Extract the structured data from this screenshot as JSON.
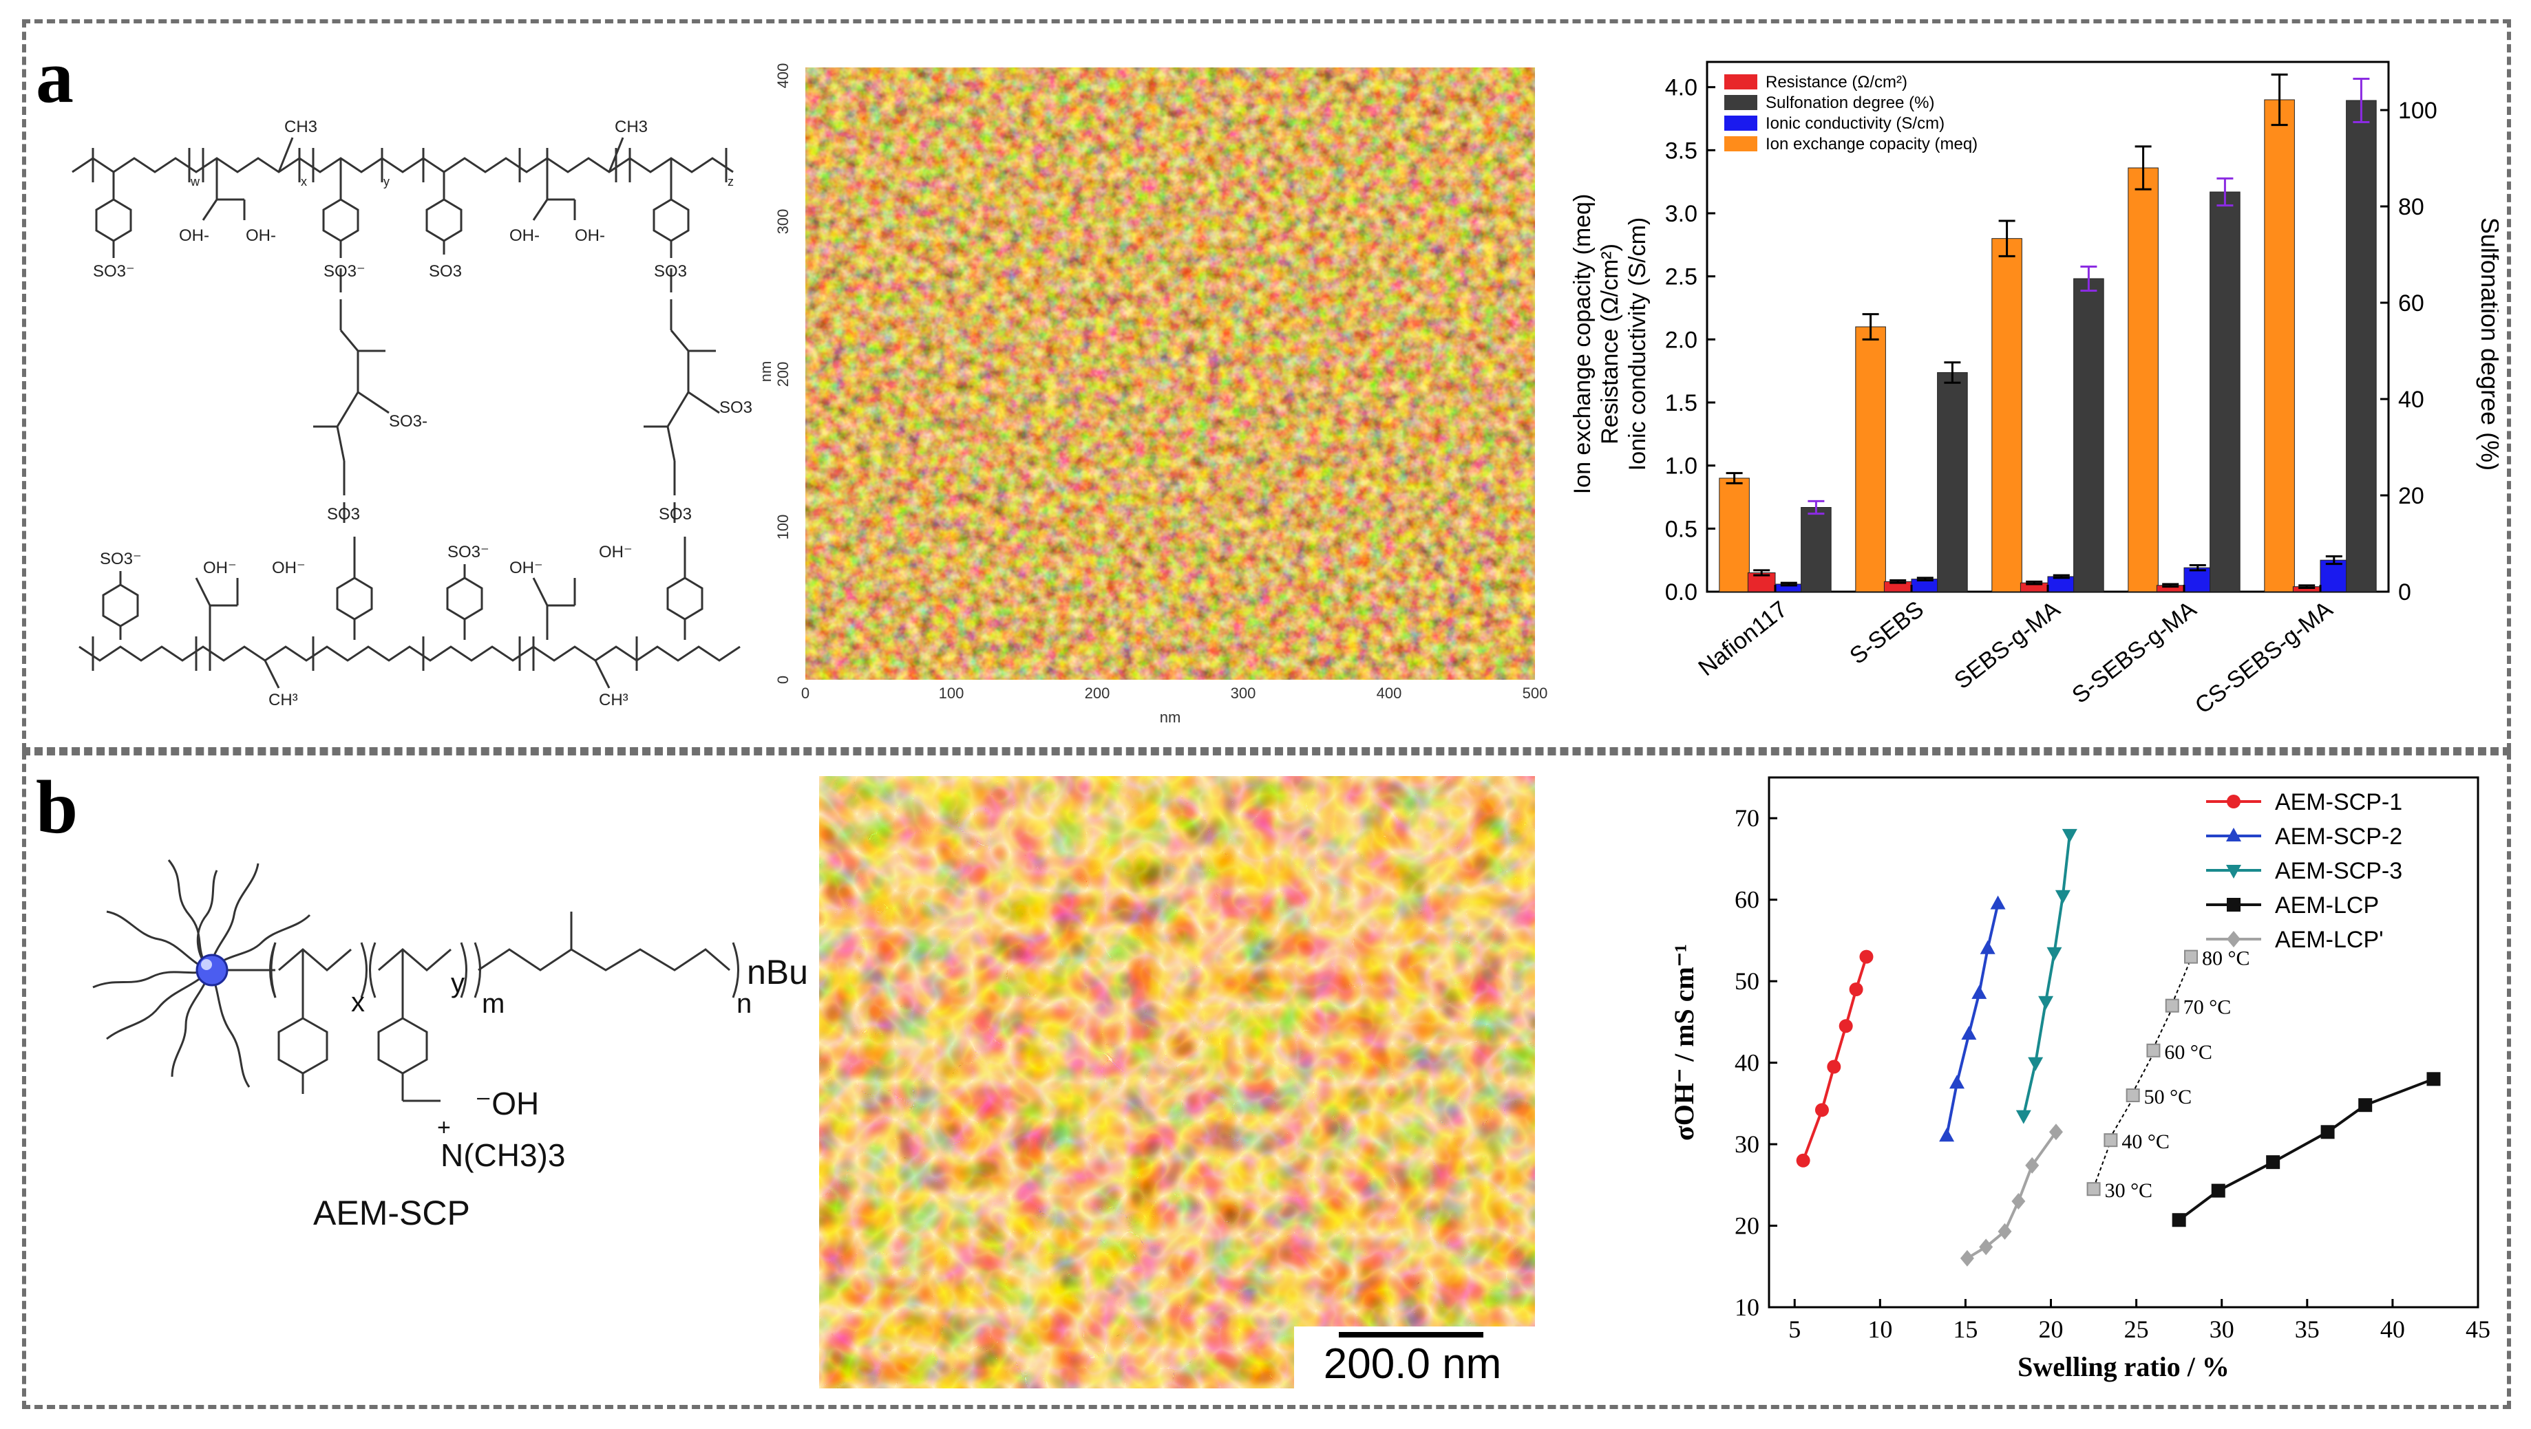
{
  "panels": {
    "a_label": "a",
    "b_label": "b"
  },
  "chem_a": {
    "so3_minus": "SO3⁻",
    "so3": "SO3",
    "so3_super": "SO3-",
    "oh_minus": "OH-",
    "oh": "OH⁻",
    "ch3": "CH3",
    "ch3_b": "CH³",
    "subs": [
      "w",
      "x",
      "y",
      "z"
    ]
  },
  "afm_a": {
    "axis_label_x": "nm",
    "axis_label_y": "nm",
    "x_ticks": [
      "0",
      "100",
      "200",
      "300",
      "400",
      "500"
    ],
    "y_ticks": [
      "0",
      "100",
      "200",
      "300",
      "400"
    ]
  },
  "chart_a_text": {
    "ylabel_left_1": "Ion exchange copacity (meq)",
    "ylabel_left_2": "Resistance (Ω/cm²)",
    "ylabel_left_3": "Ionic conductivity (S/cm)",
    "ylabel_right": "Sulfonation degree (%)"
  },
  "chem_b": {
    "sub_x": "x",
    "sub_y": "y",
    "sub_m": "m",
    "sub_n": "n",
    "end_group": "nBu",
    "hydroxide": "⁻OH",
    "plus": "+",
    "ammonium": "N(CH3)3",
    "name": "AEM-SCP"
  },
  "afm_b": {
    "scale_bar": "200.0 nm"
  },
  "colors": {
    "border": "#6f6f6f",
    "orange": "#ff8c1a",
    "red": "#e8262a",
    "blue": "#1a1aef",
    "dark": "#3c3c3c",
    "purple": "#8b2be2",
    "scp1": "#e8242a",
    "scp2": "#2343c9",
    "scp3": "#198a8e",
    "lcp": "#111111",
    "lcp_prime": "#a3a3a3"
  },
  "chart_data": [
    {
      "type": "bar",
      "categories": [
        "Nafion117",
        "S-SEBS",
        "SEBS-g-MA",
        "S-SEBS-g-MA",
        "CS-SEBS-g-MA"
      ],
      "series": [
        {
          "name": "Resistance (Ω/cm²)",
          "axis": "left",
          "values": [
            0.15,
            0.08,
            0.07,
            0.05,
            0.04
          ]
        },
        {
          "name": "Sulfonation degree (%)",
          "axis": "right",
          "values": [
            17.5,
            45.5,
            65,
            83,
            102
          ]
        },
        {
          "name": "Ionic conductivity (S/cm)",
          "axis": "left",
          "values": [
            0.06,
            0.1,
            0.12,
            0.19,
            0.25
          ]
        },
        {
          "name": "Ion exchange copacity (meq)",
          "axis": "left",
          "values": [
            0.9,
            2.1,
            2.8,
            3.36,
            3.9
          ]
        }
      ],
      "errors": {
        "Resistance (Ω/cm²)": [
          0.02,
          0.01,
          0.01,
          0.01,
          0.01
        ],
        "Sulfonation degree (%)": [
          1.3,
          2.1,
          2.5,
          2.8,
          4.5
        ],
        "Ionic conductivity (S/cm)": [
          0.01,
          0.01,
          0.01,
          0.02,
          0.03
        ],
        "Ion exchange copacity (meq)": [
          0.04,
          0.1,
          0.14,
          0.17,
          0.2
        ]
      },
      "ylim_left": [
        0,
        4.2
      ],
      "ylim_right": [
        0,
        110
      ],
      "yticks_left": [
        "0.0",
        "0.5",
        "1.0",
        "1.5",
        "2.0",
        "2.5",
        "3.0",
        "3.5",
        "4.0"
      ],
      "yticks_right": [
        "0",
        "20",
        "40",
        "60",
        "80",
        "100"
      ],
      "legend": [
        "Resistance (Ω/cm²)",
        "Sulfonation degree (%)",
        "Ionic conductivity (S/cm)",
        "Ion exchange copacity (meq)"
      ],
      "legend_position": "top-left"
    },
    {
      "type": "line",
      "xlabel": "Swelling ratio / %",
      "ylabel": "σOH⁻ / mS cm⁻¹",
      "xlim": [
        3.5,
        45
      ],
      "ylim": [
        10,
        75
      ],
      "xticks": [
        "5",
        "10",
        "15",
        "20",
        "25",
        "30",
        "35",
        "40",
        "45"
      ],
      "yticks": [
        "10",
        "20",
        "30",
        "40",
        "50",
        "60",
        "70"
      ],
      "series": [
        {
          "name": "AEM-SCP-1",
          "marker": "circle",
          "x": [
            5.5,
            6.6,
            7.3,
            8.0,
            8.6,
            9.2
          ],
          "y": [
            28,
            34.2,
            39.5,
            44.5,
            49,
            53
          ]
        },
        {
          "name": "AEM-SCP-2",
          "marker": "triangle-up",
          "x": [
            13.9,
            14.5,
            15.2,
            15.8,
            16.3,
            16.9
          ],
          "y": [
            31,
            37.5,
            43.5,
            48.5,
            54,
            59.5
          ]
        },
        {
          "name": "AEM-SCP-3",
          "marker": "triangle-down",
          "x": [
            18.4,
            19.1,
            19.7,
            20.2,
            20.7,
            21.1
          ],
          "y": [
            33.5,
            40,
            47.5,
            53.5,
            60.5,
            68
          ]
        },
        {
          "name": "AEM-LCP",
          "marker": "square",
          "x": [
            27.5,
            29.8,
            33,
            36.2,
            38.4,
            42.4
          ],
          "y": [
            20.7,
            24.3,
            27.8,
            31.5,
            34.8,
            38
          ]
        },
        {
          "name": "AEM-LCP'",
          "marker": "diamond",
          "x": [
            15.1,
            16.2,
            17.3,
            18.1,
            18.9,
            20.3
          ],
          "y": [
            16,
            17.4,
            19.3,
            23,
            27.4,
            31.5
          ]
        }
      ],
      "annotations": {
        "points_x": [
          22.5,
          23.5,
          24.8,
          26,
          27.1,
          28.2
        ],
        "points_y": [
          24.5,
          30.5,
          36,
          41.5,
          47,
          53
        ],
        "labels": [
          "30 °C",
          "40 °C",
          "50 °C",
          "60 °C",
          "70 °C",
          "80 °C"
        ]
      },
      "legend_position": "top-right"
    }
  ]
}
